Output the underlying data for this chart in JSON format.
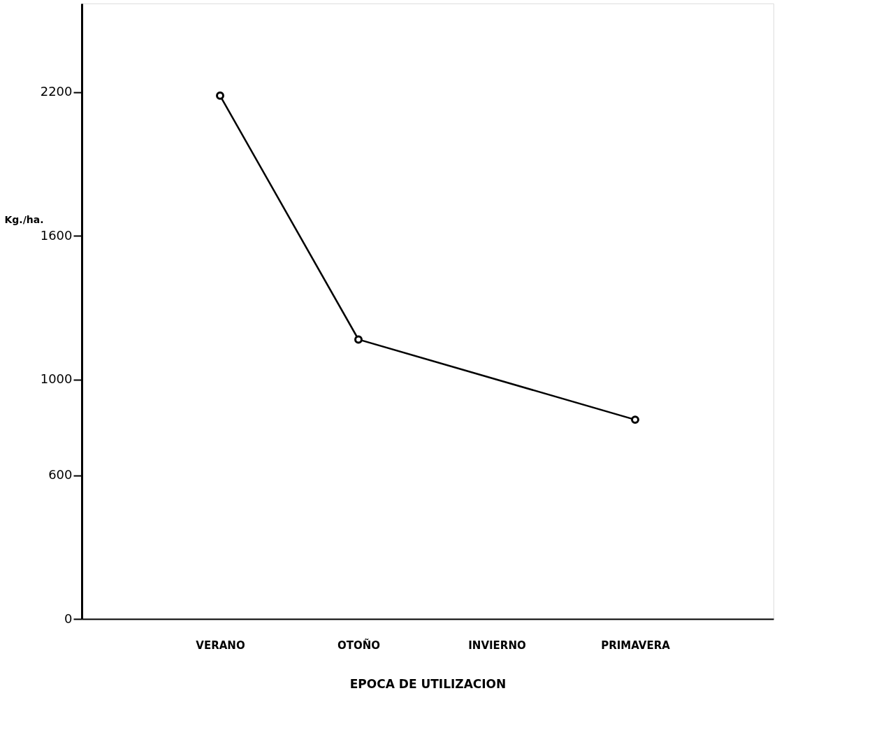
{
  "chart_data": {
    "type": "line",
    "xlabel": "EPOCA DE UTILIZACION",
    "ylabel": "Kg./ha.",
    "categories": [
      "VERANO",
      "OTOÑO",
      "INVIERNO",
      "PRIMAVERA"
    ],
    "series": [
      {
        "values": [
          2185,
          1167,
          null,
          832
        ],
        "color": "#000000"
      }
    ],
    "ylim": [
      0,
      2570
    ],
    "yticks": [
      0,
      600,
      1000,
      1600,
      2200
    ],
    "marker": "circle",
    "line_style": "solid",
    "grid": false,
    "legend": false
  }
}
